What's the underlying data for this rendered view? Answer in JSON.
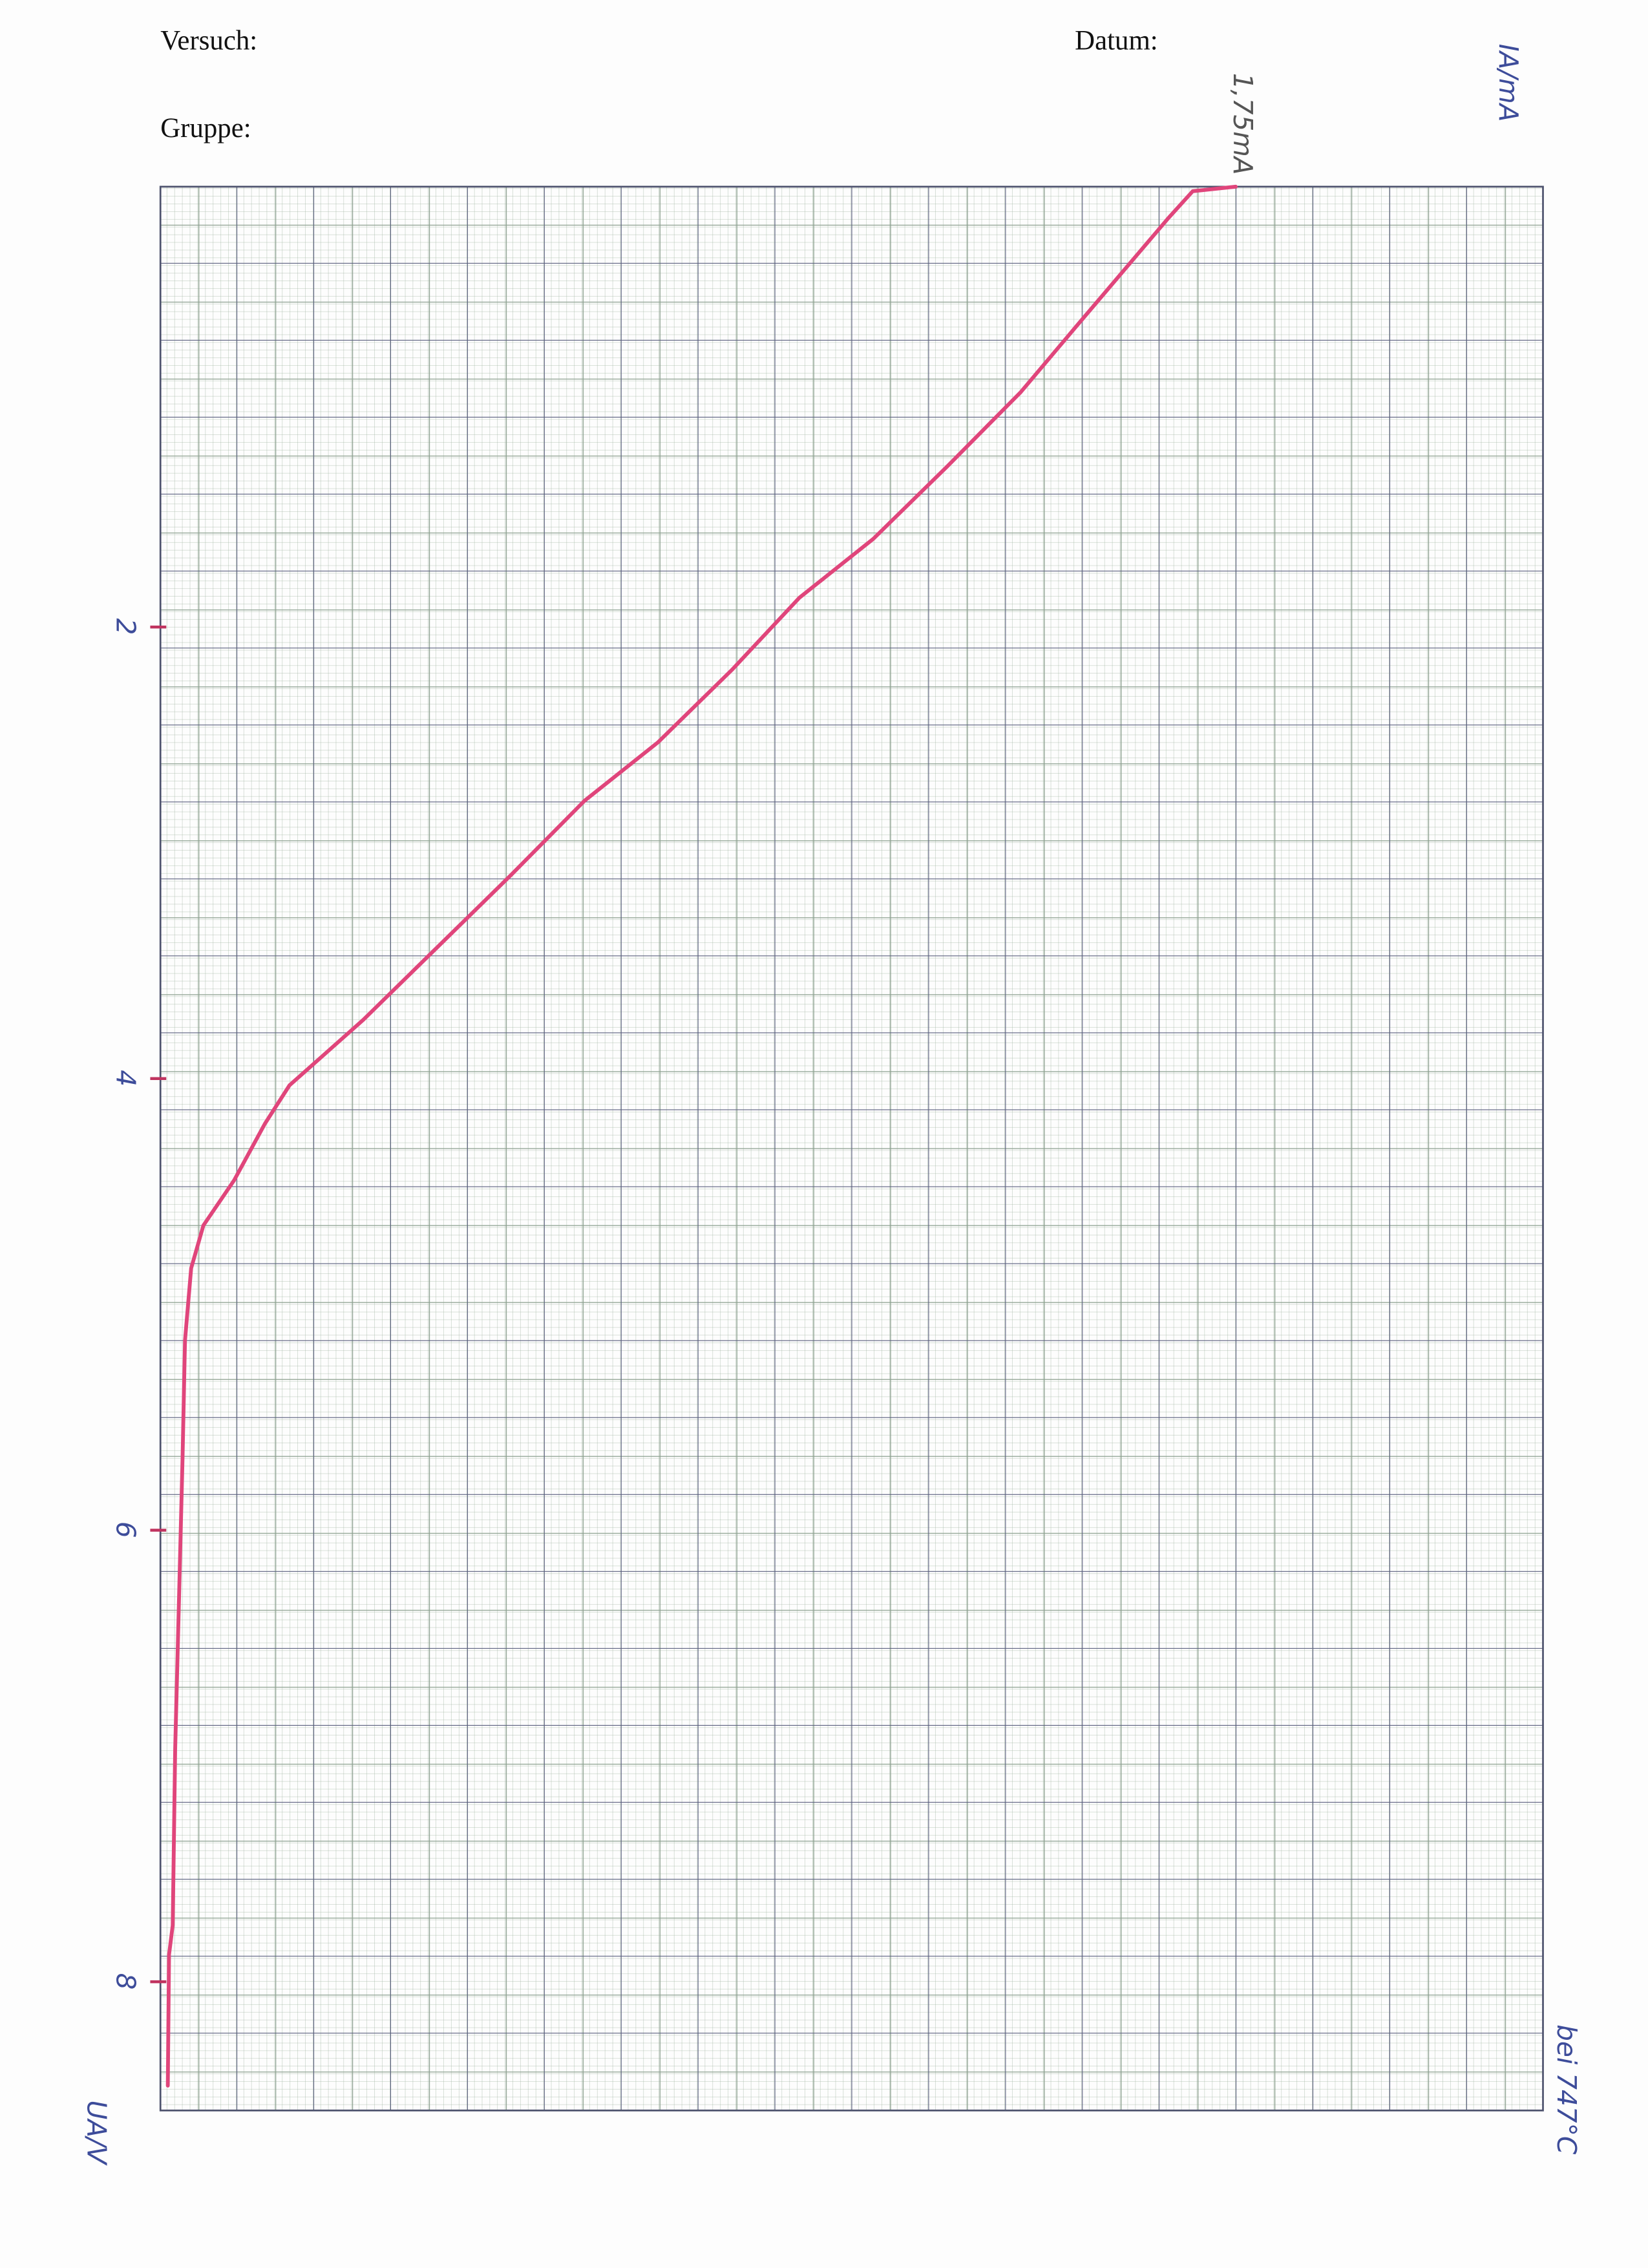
{
  "chart_data": {
    "type": "line",
    "header": {
      "experiment": "Versuch:",
      "date": "Datum:",
      "group": "Gruppe:"
    },
    "x_label": "UA/V",
    "y_label": "IA/mA",
    "annotations": [
      {
        "text": "1,75mA",
        "x": 0.05,
        "y": 1.75
      },
      {
        "text": "bei 747°C"
      }
    ],
    "x": [
      0.05,
      0.07,
      0.19,
      0.35,
      0.67,
      0.96,
      1.29,
      1.61,
      1.87,
      2.19,
      2.51,
      2.77,
      3.1,
      3.42,
      3.74,
      4.03,
      4.2,
      4.45,
      4.65,
      4.84,
      5.16,
      5.68,
      6.33,
      6.97,
      7.75,
      7.88,
      8.46
    ],
    "series": [
      {
        "color": "#e0457b",
        "values": [
          1.75,
          1.68,
          1.64,
          1.59,
          1.49,
          1.4,
          1.28,
          1.16,
          1.04,
          0.93,
          0.81,
          0.69,
          0.57,
          0.45,
          0.33,
          0.21,
          0.17,
          0.12,
          0.07,
          0.05,
          0.04,
          0.036,
          0.03,
          0.024,
          0.02,
          0.014,
          0.012
        ]
      }
    ],
    "xlim": [
      0.05,
      8.57
    ],
    "xticks": [
      2,
      4,
      6,
      8
    ],
    "ylim": [
      0,
      2.25
    ],
    "grid": true
  }
}
